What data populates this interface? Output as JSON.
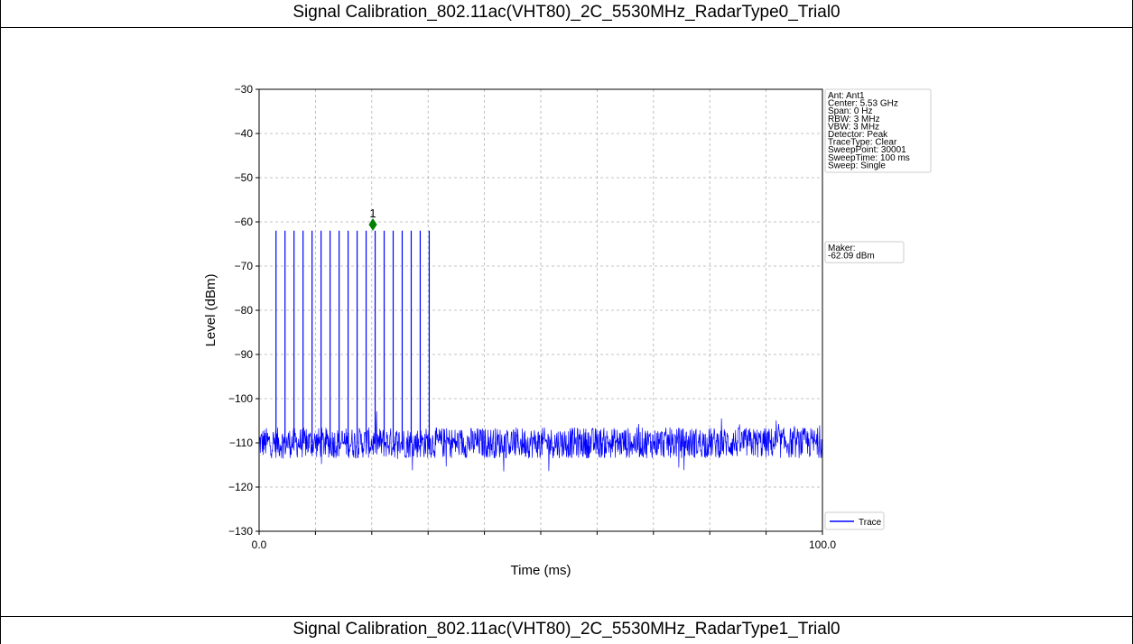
{
  "panels": [
    {
      "title": "Signal Calibration_802.11ac(VHT80)_2C_5530MHz_RadarType0_Trial0"
    },
    {
      "title": "Signal Calibration_802.11ac(VHT80)_2C_5530MHz_RadarType1_Trial0"
    }
  ],
  "chart_data": {
    "type": "line",
    "xlabel": "Time (ms)",
    "ylabel": "Level (dBm)",
    "xlim": [
      0,
      100
    ],
    "ylim": [
      -130,
      -30
    ],
    "x_tick_labels": [
      "0.0",
      "100.0"
    ],
    "y_ticks": [
      -30,
      -40,
      -50,
      -60,
      -70,
      -80,
      -90,
      -100,
      -110,
      -120,
      -130
    ],
    "grid": true,
    "series": [
      {
        "name": "Trace",
        "color": "#0000ff",
        "noise_floor_dbm": -110,
        "pulses": {
          "level_dbm": -62,
          "count": 18,
          "times_ms": [
            3.0,
            4.6,
            6.2,
            7.8,
            9.4,
            11.0,
            12.6,
            14.2,
            15.8,
            17.4,
            19.0,
            20.6,
            22.2,
            23.8,
            25.4,
            27.0,
            28.6,
            30.2
          ]
        }
      }
    ],
    "marker": {
      "label": "1",
      "x": 20.2,
      "y": -60.6,
      "color": "#008000"
    },
    "info_box": [
      "Ant: Ant1",
      "Center: 5.53 GHz",
      "Span: 0 Hz",
      "RBW: 3 MHz",
      "VBW: 3 MHz",
      "Detector: Peak",
      "TraceType: Clear",
      "SweepPoint: 30001",
      "SweepTime: 100 ms",
      "Sweep: Single"
    ],
    "marker_box": [
      "Maker:",
      "   -62.09 dBm"
    ],
    "legend_position": "bottom-right, outside plot"
  }
}
